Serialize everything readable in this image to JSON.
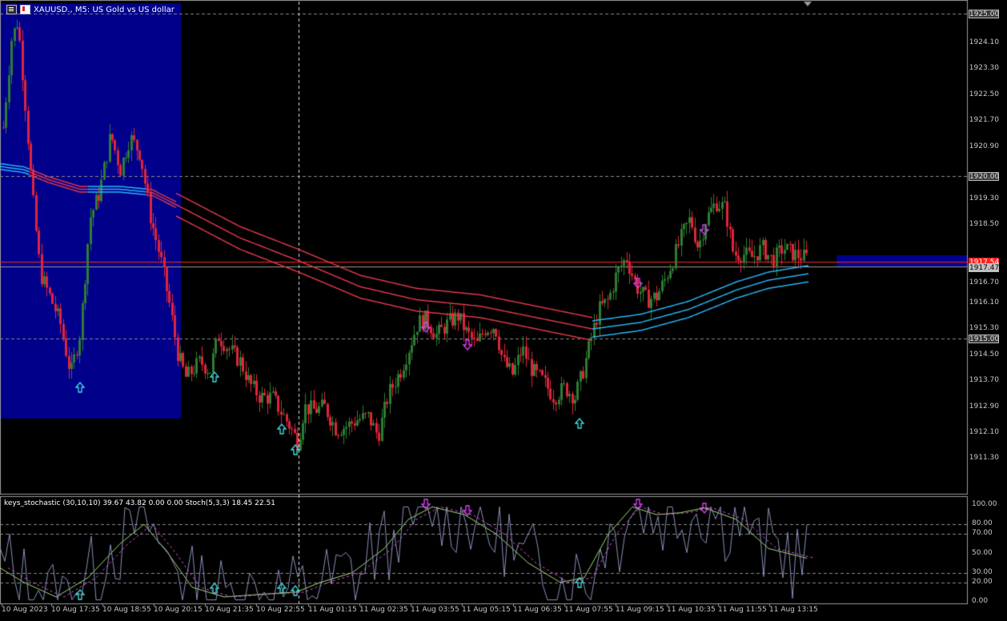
{
  "window": {
    "symbol_title": "XAUUSD., M5:  US Gold vs US dollar"
  },
  "indicator": {
    "title": "keys_stochastic (30,10,10) 39.67 43.82 0.00 0.00 Stoch(5,3,3) 18.45 22.51"
  },
  "price_axis": {
    "labels": [
      "1924.10",
      "1923.30",
      "1922.50",
      "1921.70",
      "1920.90",
      "1919.30",
      "1918.50",
      "1916.70",
      "1916.10",
      "1915.30",
      "1914.50",
      "1913.70",
      "1912.90",
      "1912.10",
      "1911.30"
    ],
    "boxed": [
      {
        "text": "1925.00",
        "style": "grid"
      },
      {
        "text": "1920.00",
        "style": "grid"
      },
      {
        "text": "1917.54",
        "style": "red"
      },
      {
        "text": "1917.47",
        "style": "grey"
      },
      {
        "text": "1915.00",
        "style": "grid"
      }
    ]
  },
  "indicator_axis": {
    "labels": [
      "100.00",
      "80.00",
      "70.00",
      "50.00",
      "30.00",
      "20.00",
      "0.00"
    ]
  },
  "time_axis": {
    "labels": [
      "10 Aug 2023",
      "10 Aug 17:35",
      "10 Aug 18:55",
      "10 Aug 20:15",
      "10 Aug 21:35",
      "10 Aug 22:55",
      "11 Aug 01:15",
      "11 Aug 02:35",
      "11 Aug 03:55",
      "11 Aug 05:15",
      "11 Aug 06:35",
      "11 Aug 07:55",
      "11 Aug 09:15",
      "11 Aug 10:35",
      "11 Aug 11:55",
      "11 Aug 13:15"
    ]
  },
  "colors": {
    "bull": "#2e7d32",
    "bear": "#e0243a",
    "ma_red": "#e03a4a",
    "ma_blue": "#29b6f6",
    "zone": "#00008b",
    "up_arrow": "#40e0e0",
    "down_arrow": "#e040fb"
  },
  "chart_data": {
    "type": "candlestick",
    "price_range": [
      1910.9,
      1925.5
    ],
    "gridlines": [
      1925.0,
      1920.0,
      1915.0
    ],
    "last_price": 1917.54,
    "ask_line": 1917.47,
    "stoch_levels": [
      100,
      80,
      70,
      50,
      30,
      20,
      0
    ]
  }
}
